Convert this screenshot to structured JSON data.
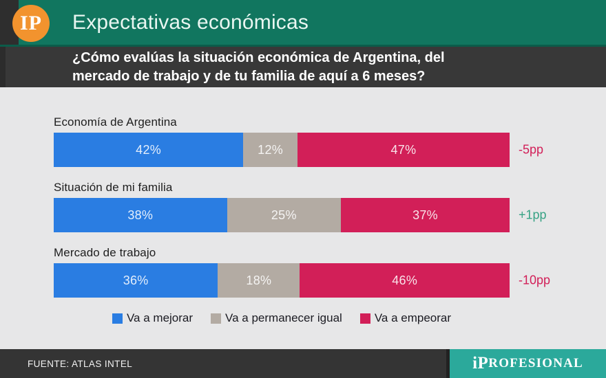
{
  "header": {
    "title": "Expectativas económicas",
    "logo_text": "IP"
  },
  "question": {
    "text": "¿Cómo evalúas la situación económica de Argentina, del mercado de trabajo y de tu familia de aquí a 6 meses?"
  },
  "chart_data": {
    "type": "bar",
    "orientation": "horizontal-stacked",
    "title": "Expectativas económicas",
    "subtitle": "¿Cómo evalúas la situación económica de Argentina, del mercado de trabajo y de tu familia de aquí a 6 meses?",
    "value_suffix": "%",
    "categories": [
      "Economía de Argentina",
      "Situación de mi familia",
      "Mercado de trabajo"
    ],
    "series": [
      {
        "name": "Va a mejorar",
        "color": "#2a7de2",
        "values": [
          42,
          38,
          36
        ]
      },
      {
        "name": "Va a permanecer igual",
        "color": "#b3aba3",
        "values": [
          12,
          25,
          18
        ]
      },
      {
        "name": "Va a empeorar",
        "color": "#d21f58",
        "values": [
          47,
          37,
          46
        ]
      }
    ],
    "deltas": [
      {
        "label": "-5pp",
        "color": "#d21f58"
      },
      {
        "label": "+1pp",
        "color": "#36a284"
      },
      {
        "label": "-10pp",
        "color": "#d21f58"
      }
    ],
    "legend_position": "bottom-center",
    "grid": false,
    "xlim": [
      0,
      101
    ]
  },
  "footer": {
    "source": "FUENTE: ATLAS INTEL",
    "brand_part1": "iP",
    "brand_part2": "ROFESIONAL"
  },
  "colors": {
    "header_teal": "#11765f",
    "header_edge": "#0b5c4a",
    "strip_dark": "#2e2e2e",
    "logo_orange": "#f2932e",
    "chart_bg": "#e7e7e8",
    "footer_teal": "#2ba99b",
    "improve_blue": "#2a7de2",
    "same_gray": "#b3aba3",
    "worsen_red": "#d21f58",
    "delta_green": "#36a284"
  }
}
